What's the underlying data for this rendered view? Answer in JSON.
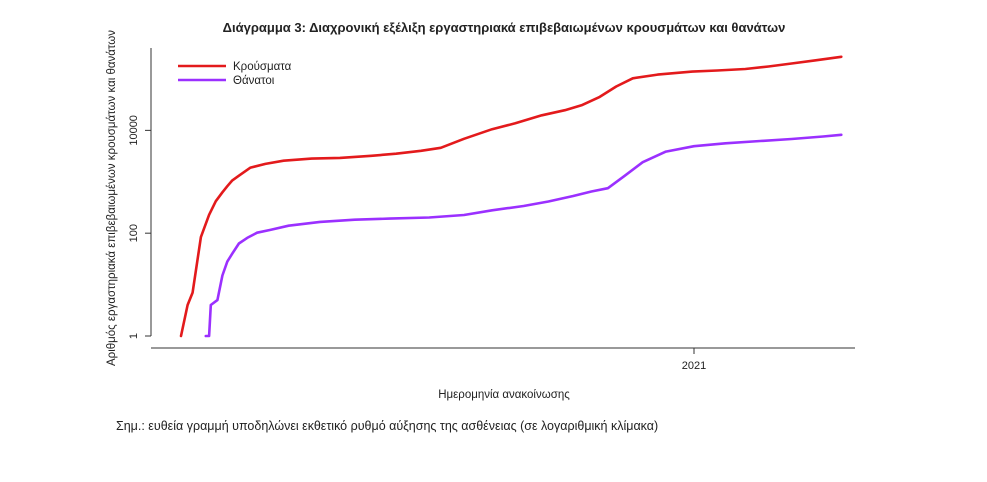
{
  "chart_data": {
    "type": "line",
    "title": "Διάγραμμα 3: Διαχρονική εξέλιξη εργαστηριακά επιβεβαιωμένων κρουσμάτων και θανάτων",
    "xlabel": "Ημερομηνία ανακοίνωσης",
    "ylabel": "Αριθμός εργαστηριακά επιβεβαιωμένων κρουσμάτων και θανάτων",
    "y_scale": "log",
    "ylim": [
      1,
      400000
    ],
    "y_ticks": [
      1,
      100,
      10000
    ],
    "y_tick_labels": [
      "1",
      "100",
      "10000"
    ],
    "x_tick_labels": [
      "2021"
    ],
    "legend_position": "top-left",
    "grid": false,
    "series": [
      {
        "name": "Κρούσματα",
        "color": "#e31a1c",
        "points": [
          [
            "2020-02-26",
            1
          ],
          [
            "2020-03-01",
            4
          ],
          [
            "2020-03-04",
            7
          ],
          [
            "2020-03-09",
            84
          ],
          [
            "2020-03-14",
            228
          ],
          [
            "2020-03-18",
            418
          ],
          [
            "2020-03-22",
            624
          ],
          [
            "2020-03-25",
            821
          ],
          [
            "2020-03-28",
            1061
          ],
          [
            "2020-04-01",
            1314
          ],
          [
            "2020-04-08",
            1884
          ],
          [
            "2020-04-17",
            2224
          ],
          [
            "2020-04-28",
            2566
          ],
          [
            "2020-05-15",
            2819
          ],
          [
            "2020-06-01",
            2918
          ],
          [
            "2020-06-20",
            3203
          ],
          [
            "2020-07-05",
            3511
          ],
          [
            "2020-07-20",
            4007
          ],
          [
            "2020-08-01",
            4587
          ],
          [
            "2020-08-15",
            6858
          ],
          [
            "2020-09-01",
            10524
          ],
          [
            "2020-09-15",
            13730
          ],
          [
            "2020-10-01",
            19613
          ],
          [
            "2020-10-15",
            24695
          ],
          [
            "2020-10-25",
            30782
          ],
          [
            "2020-11-05",
            44850
          ],
          [
            "2020-11-15",
            71420
          ],
          [
            "2020-11-25",
            102843
          ],
          [
            "2020-12-10",
            121500
          ],
          [
            "2020-12-31",
            138850
          ],
          [
            "2021-01-15",
            146000
          ],
          [
            "2021-02-01",
            156000
          ],
          [
            "2021-02-15",
            175000
          ],
          [
            "2021-03-01",
            200000
          ],
          [
            "2021-03-15",
            230000
          ],
          [
            "2021-03-31",
            270000
          ]
        ]
      },
      {
        "name": "Θάνατοι",
        "color": "#9b30ff",
        "points": [
          [
            "2020-03-12",
            1
          ],
          [
            "2020-03-14",
            1
          ],
          [
            "2020-03-15",
            4
          ],
          [
            "2020-03-19",
            5
          ],
          [
            "2020-03-22",
            15
          ],
          [
            "2020-03-25",
            28
          ],
          [
            "2020-03-28",
            40
          ],
          [
            "2020-04-01",
            63
          ],
          [
            "2020-04-06",
            81
          ],
          [
            "2020-04-12",
            102
          ],
          [
            "2020-04-20",
            116
          ],
          [
            "2020-05-01",
            140
          ],
          [
            "2020-05-20",
            166
          ],
          [
            "2020-06-10",
            183
          ],
          [
            "2020-07-01",
            192
          ],
          [
            "2020-07-25",
            202
          ],
          [
            "2020-08-15",
            226
          ],
          [
            "2020-09-01",
            279
          ],
          [
            "2020-09-20",
            338
          ],
          [
            "2020-10-05",
            413
          ],
          [
            "2020-10-20",
            528
          ],
          [
            "2020-10-31",
            647
          ],
          [
            "2020-11-10",
            750
          ],
          [
            "2020-11-20",
            1300
          ],
          [
            "2020-12-01",
            2400
          ],
          [
            "2020-12-15",
            3870
          ],
          [
            "2021-01-01",
            4920
          ],
          [
            "2021-01-20",
            5600
          ],
          [
            "2021-02-10",
            6200
          ],
          [
            "2021-03-01",
            6800
          ],
          [
            "2021-03-20",
            7600
          ],
          [
            "2021-03-31",
            8200
          ]
        ]
      }
    ]
  },
  "note": "Σημ.: ευθεία γραμμή υποδηλώνει εκθετικό ρυθμό αύξησης της ασθένειας (σε λογαριθμική κλίμακα)"
}
